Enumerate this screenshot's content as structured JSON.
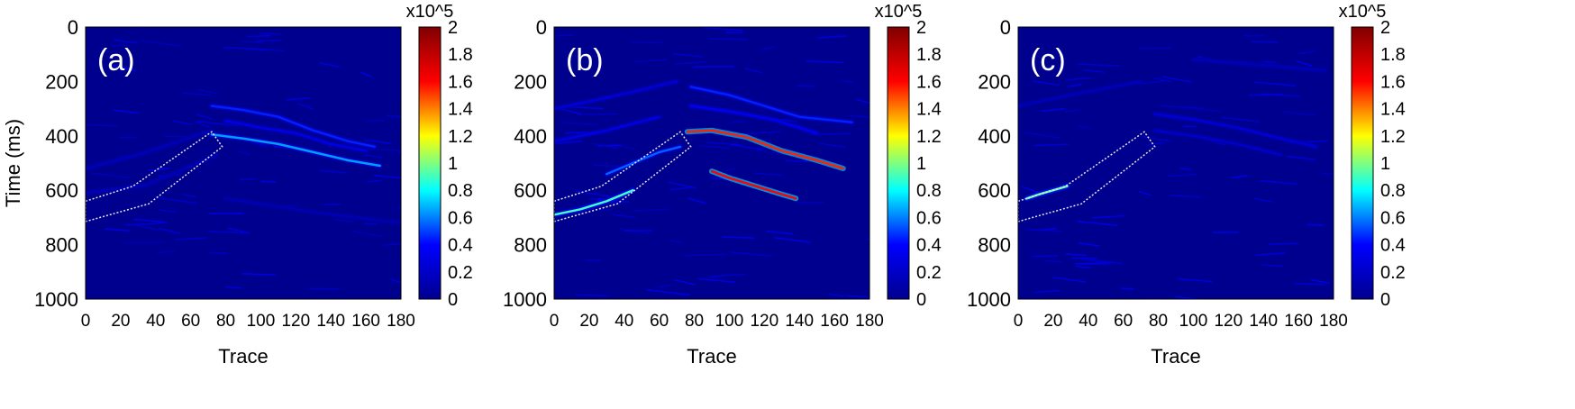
{
  "colors": {
    "background": "#00008f",
    "annotation_box": "#e6e6e6",
    "colormap": [
      "#00008f",
      "#0000ff",
      "#00ffff",
      "#ffff00",
      "#ff0000",
      "#800000"
    ]
  },
  "chart_data": [
    {
      "type": "heatmap",
      "panel_label": "(a)",
      "title": "",
      "xlabel": "Trace",
      "ylabel": "Time (ms)",
      "xlim": [
        0,
        180
      ],
      "ylim": [
        1000,
        0
      ],
      "x_ticks": [
        "0",
        "20",
        "40",
        "60",
        "80",
        "100",
        "120",
        "140",
        "160",
        "180"
      ],
      "y_ticks": [
        "0",
        "200",
        "400",
        "600",
        "800",
        "1000"
      ],
      "colorbar": {
        "scale_label": "x10^5",
        "range": [
          0,
          2
        ],
        "ticks": [
          "0",
          "0.2",
          "0.4",
          "0.6",
          "0.8",
          "1",
          "1.2",
          "1.4",
          "1.6",
          "1.8",
          "2"
        ]
      },
      "annotation_polygon": [
        [
          0,
          640
        ],
        [
          27,
          585
        ],
        [
          72,
          385
        ],
        [
          78,
          440
        ],
        [
          36,
          650
        ],
        [
          0,
          715
        ]
      ],
      "events": [
        {
          "x": [
            72,
            90,
            110,
            130,
            150,
            165
          ],
          "y": [
            290,
            305,
            330,
            380,
            420,
            440
          ],
          "amp": 0.45
        },
        {
          "x": [
            72,
            90,
            110,
            130,
            150,
            168
          ],
          "y": [
            395,
            410,
            430,
            460,
            490,
            510
          ],
          "amp": 0.65
        },
        {
          "x": [
            80,
            100,
            120,
            140,
            160
          ],
          "y": [
            345,
            370,
            390,
            430,
            455
          ],
          "amp": 0.3
        },
        {
          "x": [
            0,
            30,
            72
          ],
          "y": [
            520,
            470,
            380
          ],
          "amp": 0.15
        },
        {
          "x": [
            0,
            35,
            75
          ],
          "y": [
            610,
            580,
            470
          ],
          "amp": 0.15
        },
        {
          "x": [
            80,
            130,
            180
          ],
          "y": [
            630,
            680,
            720
          ],
          "amp": 0.12
        }
      ]
    },
    {
      "type": "heatmap",
      "panel_label": "(b)",
      "title": "",
      "xlabel": "Trace",
      "ylabel": "",
      "xlim": [
        0,
        180
      ],
      "ylim": [
        1000,
        0
      ],
      "x_ticks": [
        "0",
        "20",
        "40",
        "60",
        "80",
        "100",
        "120",
        "140",
        "160",
        "180"
      ],
      "y_ticks": [
        "0",
        "200",
        "400",
        "600",
        "800",
        "1000"
      ],
      "colorbar": {
        "scale_label": "x10^5",
        "range": [
          0,
          2
        ],
        "ticks": [
          "0",
          "0.2",
          "0.4",
          "0.6",
          "0.8",
          "1",
          "1.2",
          "1.4",
          "1.6",
          "1.8",
          "2"
        ]
      },
      "annotation_polygon": [
        [
          0,
          640
        ],
        [
          27,
          585
        ],
        [
          72,
          385
        ],
        [
          78,
          440
        ],
        [
          36,
          650
        ],
        [
          0,
          715
        ]
      ],
      "events": [
        {
          "x": [
            76,
            90,
            110,
            130,
            150,
            165
          ],
          "y": [
            385,
            380,
            405,
            455,
            490,
            520
          ],
          "amp": 1.55
        },
        {
          "x": [
            90,
            100,
            110,
            120,
            130,
            138
          ],
          "y": [
            530,
            555,
            575,
            595,
            615,
            630
          ],
          "amp": 1.6
        },
        {
          "x": [
            0,
            15,
            30,
            45
          ],
          "y": [
            690,
            670,
            640,
            600
          ],
          "amp": 0.9
        },
        {
          "x": [
            30,
            45,
            60,
            72
          ],
          "y": [
            540,
            500,
            460,
            440
          ],
          "amp": 0.55
        },
        {
          "x": [
            78,
            100,
            120,
            140,
            170
          ],
          "y": [
            220,
            250,
            290,
            330,
            350
          ],
          "amp": 0.45
        },
        {
          "x": [
            78,
            100,
            125,
            150
          ],
          "y": [
            290,
            310,
            340,
            390
          ],
          "amp": 0.35
        },
        {
          "x": [
            0,
            30,
            70
          ],
          "y": [
            300,
            260,
            200
          ],
          "amp": 0.25
        },
        {
          "x": [
            0,
            30,
            60
          ],
          "y": [
            420,
            380,
            330
          ],
          "amp": 0.3
        }
      ]
    },
    {
      "type": "heatmap",
      "panel_label": "(c)",
      "title": "",
      "xlabel": "Trace",
      "ylabel": "",
      "xlim": [
        0,
        180
      ],
      "ylim": [
        1000,
        0
      ],
      "x_ticks": [
        "0",
        "20",
        "40",
        "60",
        "80",
        "100",
        "120",
        "140",
        "160",
        "180"
      ],
      "y_ticks": [
        "0",
        "200",
        "400",
        "600",
        "800",
        "1000"
      ],
      "colorbar": {
        "scale_label": "x10^5",
        "range": [
          0,
          2
        ],
        "ticks": [
          "0",
          "0.2",
          "0.4",
          "0.6",
          "0.8",
          "1",
          "1.2",
          "1.4",
          "1.6",
          "1.8",
          "2"
        ]
      },
      "annotation_polygon": [
        [
          0,
          640
        ],
        [
          27,
          585
        ],
        [
          72,
          385
        ],
        [
          78,
          440
        ],
        [
          36,
          650
        ],
        [
          0,
          715
        ]
      ],
      "events": [
        {
          "x": [
            5,
            12,
            20,
            28
          ],
          "y": [
            630,
            615,
            600,
            585
          ],
          "amp": 0.95
        },
        {
          "x": [
            78,
            100,
            125,
            150,
            170
          ],
          "y": [
            320,
            340,
            370,
            410,
            440
          ],
          "amp": 0.25
        },
        {
          "x": [
            78,
            100,
            125,
            150
          ],
          "y": [
            380,
            400,
            430,
            470
          ],
          "amp": 0.2
        },
        {
          "x": [
            0,
            30,
            70
          ],
          "y": [
            290,
            250,
            200
          ],
          "amp": 0.15
        },
        {
          "x": [
            100,
            140,
            175
          ],
          "y": [
            120,
            140,
            160
          ],
          "amp": 0.15
        }
      ]
    }
  ]
}
